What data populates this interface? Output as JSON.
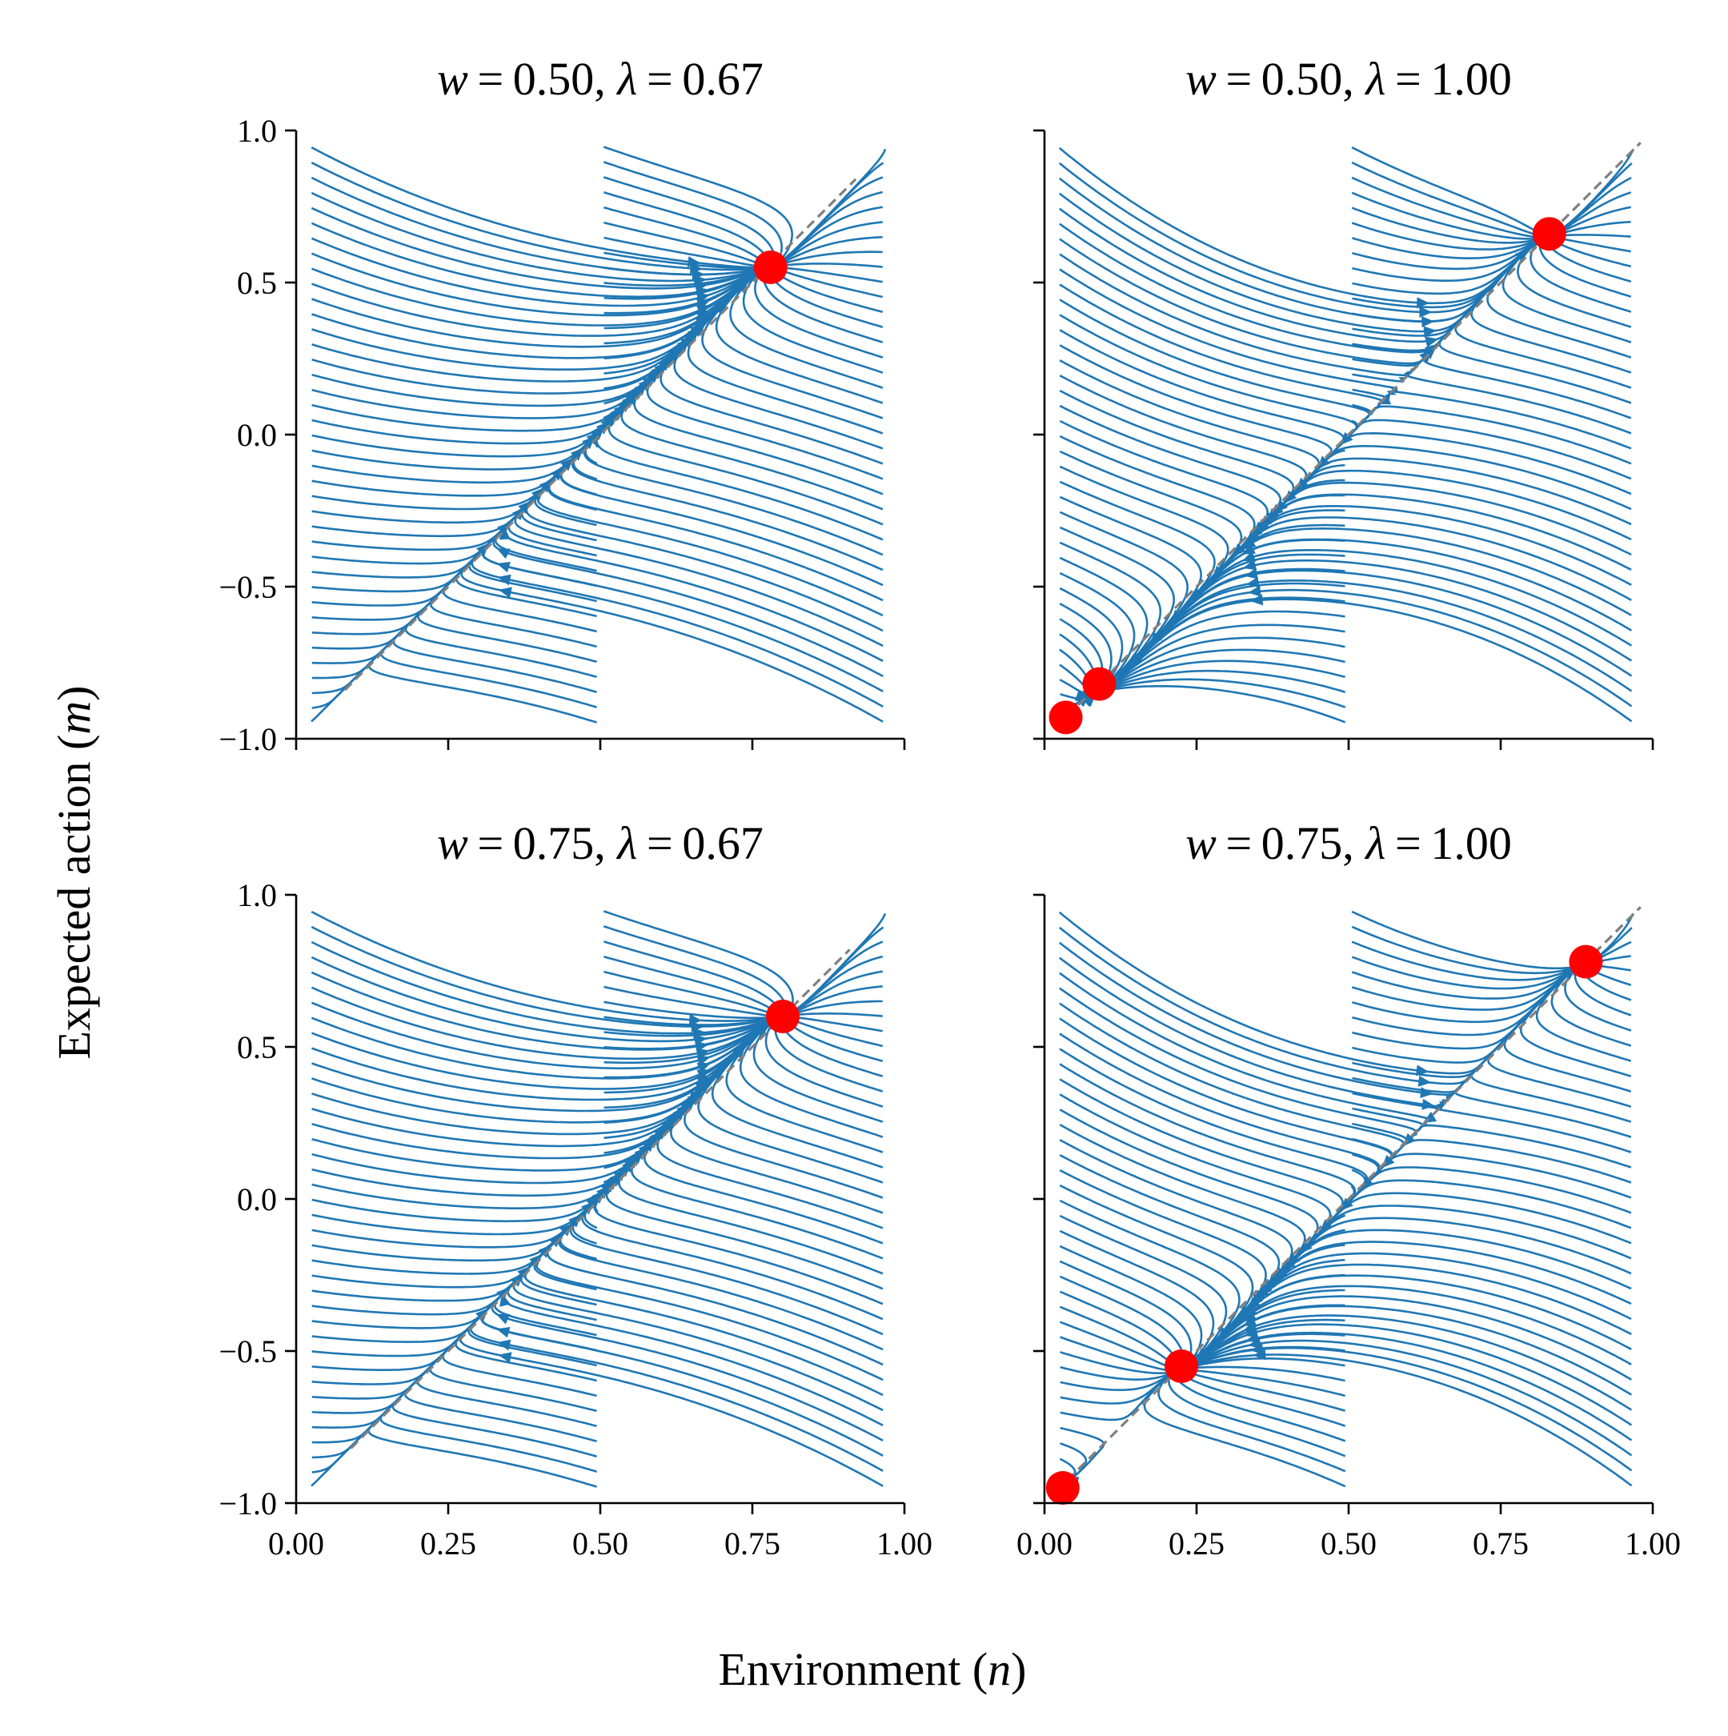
{
  "chart_data": {
    "type": "streamplot",
    "xlabel": "Environment (n)",
    "ylabel": "Expected action (m)",
    "xlim": [
      0,
      1
    ],
    "ylim": [
      -1,
      1
    ],
    "x_ticks": [
      "0.00",
      "0.25",
      "0.50",
      "0.75",
      "1.00"
    ],
    "y_ticks": [
      "1.0",
      "0.5",
      "0.0",
      "−0.5",
      "−1.0"
    ],
    "colors": {
      "stream": "#1f77b4",
      "fixed_point": "#ff0000",
      "diagonal": "#808080"
    },
    "panels": [
      {
        "title_parts": {
          "w_var": "w",
          "w_val": "0.50",
          "lambda_var": "λ",
          "lambda_val": "0.67"
        },
        "w": 0.5,
        "lambda": 0.67,
        "fixed_points": [
          {
            "n": 0.78,
            "m": 0.55
          }
        ],
        "diagonal": {
          "n": [
            0.08,
            0.92
          ],
          "m": [
            -0.84,
            0.84
          ]
        }
      },
      {
        "title_parts": {
          "w_var": "w",
          "w_val": "0.50",
          "lambda_var": "λ",
          "lambda_val": "1.00"
        },
        "w": 0.5,
        "lambda": 1.0,
        "fixed_points": [
          {
            "n": 0.83,
            "m": 0.66
          },
          {
            "n": 0.09,
            "m": -0.82
          },
          {
            "n": 0.035,
            "m": -0.93
          }
        ],
        "diagonal": {
          "n": [
            0.02,
            0.98
          ],
          "m": [
            -0.96,
            0.96
          ]
        }
      },
      {
        "title_parts": {
          "w_var": "w",
          "w_val": "0.75",
          "lambda_var": "λ",
          "lambda_val": "0.67"
        },
        "w": 0.75,
        "lambda": 0.67,
        "fixed_points": [
          {
            "n": 0.8,
            "m": 0.6
          }
        ],
        "diagonal": {
          "n": [
            0.09,
            0.91
          ],
          "m": [
            -0.82,
            0.82
          ]
        }
      },
      {
        "title_parts": {
          "w_var": "w",
          "w_val": "0.75",
          "lambda_var": "λ",
          "lambda_val": "1.00"
        },
        "w": 0.75,
        "lambda": 1.0,
        "fixed_points": [
          {
            "n": 0.89,
            "m": 0.78
          },
          {
            "n": 0.225,
            "m": -0.55
          },
          {
            "n": 0.03,
            "m": -0.95
          }
        ],
        "diagonal": {
          "n": [
            0.02,
            0.98
          ],
          "m": [
            -0.96,
            0.96
          ]
        }
      }
    ]
  },
  "axis_titles": {
    "x": {
      "text": "Environment (",
      "var": "n",
      "close": ")"
    },
    "y": {
      "text": "Expected action (",
      "var": "m",
      "close": ")"
    }
  }
}
